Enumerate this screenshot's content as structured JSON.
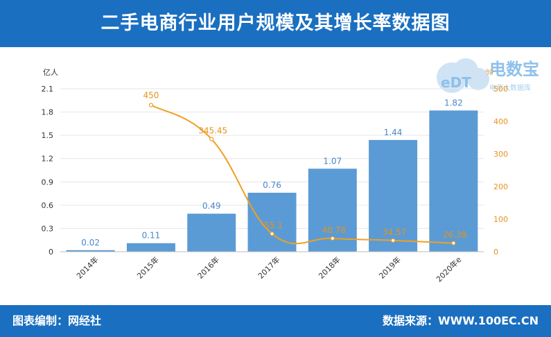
{
  "title": "二手电商行业用户规模及其增长率数据图",
  "footer": {
    "source_left": "图表编制：网经社",
    "source_right": "数据来源：WWW.100EC.CN"
  },
  "watermark": {
    "brand": "电数宝",
    "logo": "eDT",
    "sub": "电商大数据库"
  },
  "colors": {
    "bar": "#5b9bd5",
    "line": "#f0a020",
    "header": "#1a6fc0",
    "bar_label": "#4a86c8"
  },
  "chart_data": {
    "type": "bar",
    "categories": [
      "2014年",
      "2015年",
      "2016年",
      "2017年",
      "2018年",
      "2019年",
      "2020年e"
    ],
    "y_left_unit": "亿人",
    "y_right_unit": "%",
    "ylim_left": [
      0,
      2.1
    ],
    "yticks_left": [
      0,
      0.3,
      0.6,
      0.9,
      1.2,
      1.5,
      1.8,
      2.1
    ],
    "ylim_right": [
      0,
      500
    ],
    "yticks_right": [
      0,
      100,
      200,
      300,
      400,
      500
    ],
    "grid": true,
    "series": [
      {
        "type": "bar",
        "axis": "left",
        "values": [
          0.02,
          0.11,
          0.49,
          0.76,
          1.07,
          1.44,
          1.82
        ],
        "labels": [
          "0.02",
          "0.11",
          "0.49",
          "0.76",
          "1.07",
          "1.44",
          "1.82"
        ]
      },
      {
        "type": "line",
        "axis": "right",
        "values": [
          null,
          450,
          345.45,
          55.1,
          40.78,
          34.57,
          26.38
        ],
        "labels": [
          "",
          "450",
          "345.45",
          "55.1",
          "40.78",
          "34.57",
          "26.38"
        ]
      }
    ]
  }
}
